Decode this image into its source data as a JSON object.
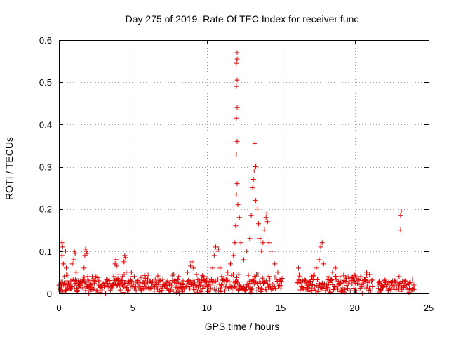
{
  "chart_data": {
    "type": "scatter",
    "title": "Day 275 of 2019, Rate Of TEC Index for receiver func",
    "xlabel": "GPS time / hours",
    "ylabel": "ROTI / TECUs",
    "xlim": [
      0,
      25
    ],
    "ylim": [
      0,
      0.6
    ],
    "x_ticks": [
      0,
      5,
      10,
      15,
      20,
      25
    ],
    "x_tick_labels": [
      "0",
      "5",
      "10",
      "15",
      "20",
      "25"
    ],
    "y_ticks": [
      0,
      0.1,
      0.2,
      0.3,
      0.4,
      0.5,
      0.6
    ],
    "y_tick_labels": [
      "0",
      "0.1",
      "0.2",
      "0.3",
      "0.4",
      "0.5",
      "0.6"
    ],
    "grid": true,
    "marker": "plus",
    "series": [
      {
        "name": "ROTI",
        "color": "#e00000",
        "points": [
          [
            0.1,
            0.01
          ],
          [
            0.15,
            0.02
          ],
          [
            0.2,
            0.09
          ],
          [
            0.2,
            0.12
          ],
          [
            0.25,
            0.11
          ],
          [
            0.3,
            0.07
          ],
          [
            0.35,
            0.04
          ],
          [
            0.4,
            0.02
          ],
          [
            0.45,
            0.1
          ],
          [
            0.5,
            0.06
          ],
          [
            0.55,
            0.03
          ],
          [
            0.6,
            0.015
          ],
          [
            0.7,
            0.02
          ],
          [
            0.8,
            0.03
          ],
          [
            0.9,
            0.07
          ],
          [
            1.0,
            0.08
          ],
          [
            1.05,
            0.1
          ],
          [
            1.1,
            0.095
          ],
          [
            1.15,
            0.05
          ],
          [
            1.2,
            0.03
          ],
          [
            1.3,
            0.02
          ],
          [
            1.4,
            0.025
          ],
          [
            1.5,
            0.02
          ],
          [
            1.6,
            0.03
          ],
          [
            1.7,
            0.06
          ],
          [
            1.75,
            0.09
          ],
          [
            1.8,
            0.105
          ],
          [
            1.85,
            0.1
          ],
          [
            1.9,
            0.095
          ],
          [
            1.95,
            0.04
          ],
          [
            2.0,
            0.03
          ],
          [
            2.1,
            0.02
          ],
          [
            2.3,
            0.035
          ],
          [
            2.5,
            0.04
          ],
          [
            2.7,
            0.03
          ],
          [
            2.9,
            0.02
          ],
          [
            3.1,
            0.025
          ],
          [
            3.3,
            0.03
          ],
          [
            3.5,
            0.02
          ],
          [
            3.7,
            0.04
          ],
          [
            3.8,
            0.07
          ],
          [
            3.85,
            0.08
          ],
          [
            3.9,
            0.065
          ],
          [
            4.0,
            0.03
          ],
          [
            4.2,
            0.02
          ],
          [
            4.3,
            0.04
          ],
          [
            4.4,
            0.075
          ],
          [
            4.45,
            0.09
          ],
          [
            4.5,
            0.085
          ],
          [
            4.55,
            0.05
          ],
          [
            4.7,
            0.03
          ],
          [
            4.9,
            0.05
          ],
          [
            5.1,
            0.04
          ],
          [
            5.3,
            0.03
          ],
          [
            5.5,
            0.025
          ],
          [
            5.8,
            0.03
          ],
          [
            6.0,
            0.035
          ],
          [
            6.3,
            0.03
          ],
          [
            6.6,
            0.025
          ],
          [
            6.9,
            0.03
          ],
          [
            7.2,
            0.02
          ],
          [
            7.5,
            0.025
          ],
          [
            7.8,
            0.03
          ],
          [
            8.1,
            0.04
          ],
          [
            8.4,
            0.03
          ],
          [
            8.7,
            0.05
          ],
          [
            8.9,
            0.065
          ],
          [
            9.0,
            0.075
          ],
          [
            9.1,
            0.06
          ],
          [
            9.3,
            0.045
          ],
          [
            9.5,
            0.03
          ],
          [
            9.8,
            0.04
          ],
          [
            10.0,
            0.035
          ],
          [
            10.2,
            0.03
          ],
          [
            10.4,
            0.06
          ],
          [
            10.5,
            0.09
          ],
          [
            10.6,
            0.11
          ],
          [
            10.7,
            0.1
          ],
          [
            10.8,
            0.105
          ],
          [
            10.9,
            0.06
          ],
          [
            11.0,
            0.04
          ],
          [
            11.2,
            0.03
          ],
          [
            11.4,
            0.05
          ],
          [
            11.6,
            0.07
          ],
          [
            11.8,
            0.09
          ],
          [
            11.9,
            0.12
          ],
          [
            11.95,
            0.16
          ],
          [
            12.0,
            0.235
          ],
          [
            12.05,
            0.26
          ],
          [
            12.0,
            0.33
          ],
          [
            12.05,
            0.36
          ],
          [
            12.0,
            0.415
          ],
          [
            12.05,
            0.44
          ],
          [
            12.0,
            0.49
          ],
          [
            12.05,
            0.505
          ],
          [
            12.0,
            0.545
          ],
          [
            12.05,
            0.555
          ],
          [
            12.05,
            0.57
          ],
          [
            12.1,
            0.21
          ],
          [
            12.2,
            0.18
          ],
          [
            12.3,
            0.12
          ],
          [
            12.5,
            0.08
          ],
          [
            12.7,
            0.1
          ],
          [
            12.9,
            0.13
          ],
          [
            13.0,
            0.185
          ],
          [
            13.1,
            0.25
          ],
          [
            13.15,
            0.27
          ],
          [
            13.2,
            0.29
          ],
          [
            13.3,
            0.3
          ],
          [
            13.25,
            0.355
          ],
          [
            13.3,
            0.22
          ],
          [
            13.4,
            0.2
          ],
          [
            13.5,
            0.165
          ],
          [
            13.6,
            0.13
          ],
          [
            13.7,
            0.1
          ],
          [
            13.8,
            0.12
          ],
          [
            13.9,
            0.15
          ],
          [
            14.0,
            0.18
          ],
          [
            14.05,
            0.19
          ],
          [
            14.1,
            0.17
          ],
          [
            14.2,
            0.12
          ],
          [
            14.4,
            0.1
          ],
          [
            14.6,
            0.07
          ],
          [
            14.8,
            0.05
          ],
          [
            15.0,
            0.03
          ],
          [
            16.2,
            0.06
          ],
          [
            16.3,
            0.04
          ],
          [
            16.5,
            0.03
          ],
          [
            16.8,
            0.02
          ],
          [
            17.1,
            0.04
          ],
          [
            17.4,
            0.06
          ],
          [
            17.6,
            0.08
          ],
          [
            17.7,
            0.11
          ],
          [
            17.8,
            0.12
          ],
          [
            17.9,
            0.07
          ],
          [
            18.2,
            0.04
          ],
          [
            18.5,
            0.05
          ],
          [
            18.7,
            0.06
          ],
          [
            19.0,
            0.04
          ],
          [
            19.3,
            0.03
          ],
          [
            19.6,
            0.035
          ],
          [
            20.0,
            0.03
          ],
          [
            20.4,
            0.04
          ],
          [
            20.8,
            0.05
          ],
          [
            21.0,
            0.045
          ],
          [
            21.7,
            0.02
          ],
          [
            22.0,
            0.03
          ],
          [
            22.3,
            0.025
          ],
          [
            22.7,
            0.03
          ],
          [
            23.0,
            0.04
          ],
          [
            23.1,
            0.15
          ],
          [
            23.1,
            0.185
          ],
          [
            23.15,
            0.195
          ],
          [
            23.4,
            0.03
          ],
          [
            23.7,
            0.025
          ],
          [
            24.0,
            0.02
          ]
        ]
      }
    ],
    "dense_band": [
      {
        "start": 0.0,
        "end": 15.1,
        "level": 0.02,
        "max": 0.045
      },
      {
        "start": 16.1,
        "end": 21.2,
        "level": 0.02,
        "max": 0.045
      },
      {
        "start": 21.6,
        "end": 24.1,
        "level": 0.018,
        "max": 0.035
      }
    ]
  }
}
